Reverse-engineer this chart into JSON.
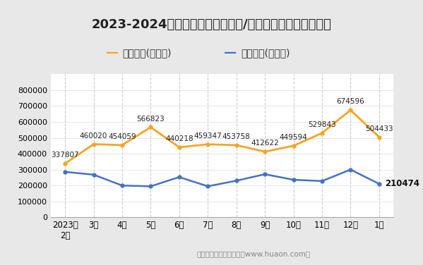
{
  "title": "2023-2024年湖北省（境内目的地/货源地）进、出口额统计",
  "x_labels": [
    "2023年\n2月",
    "3月",
    "4月",
    "5月",
    "6月",
    "7月",
    "8月",
    "9月",
    "10月",
    "11月",
    "12月",
    "1月"
  ],
  "export_values": [
    337807,
    460020,
    454059,
    566823,
    440218,
    459347,
    453758,
    412622,
    449594,
    529843,
    674596,
    504433
  ],
  "import_values": [
    286000,
    268000,
    200000,
    195000,
    253000,
    195000,
    230000,
    271000,
    236000,
    228000,
    300000,
    210474
  ],
  "export_label": "出口总额(万美元)",
  "import_label": "进口总额(万美元)",
  "export_color": "#F5A623",
  "import_color": "#4472C4",
  "import_last_annotation": 210474,
  "ylim": [
    0,
    900000
  ],
  "yticks": [
    0,
    100000,
    200000,
    300000,
    400000,
    500000,
    600000,
    700000,
    800000
  ],
  "outer_bg_color": "#e8e8e8",
  "plot_bg_color": "#ffffff",
  "title_fontsize": 13,
  "legend_fontsize": 10,
  "annotation_fontsize": 7.5,
  "watermark_text": "制图：华经产业研究院（www.huaon.com）",
  "footer_color": "#888888"
}
